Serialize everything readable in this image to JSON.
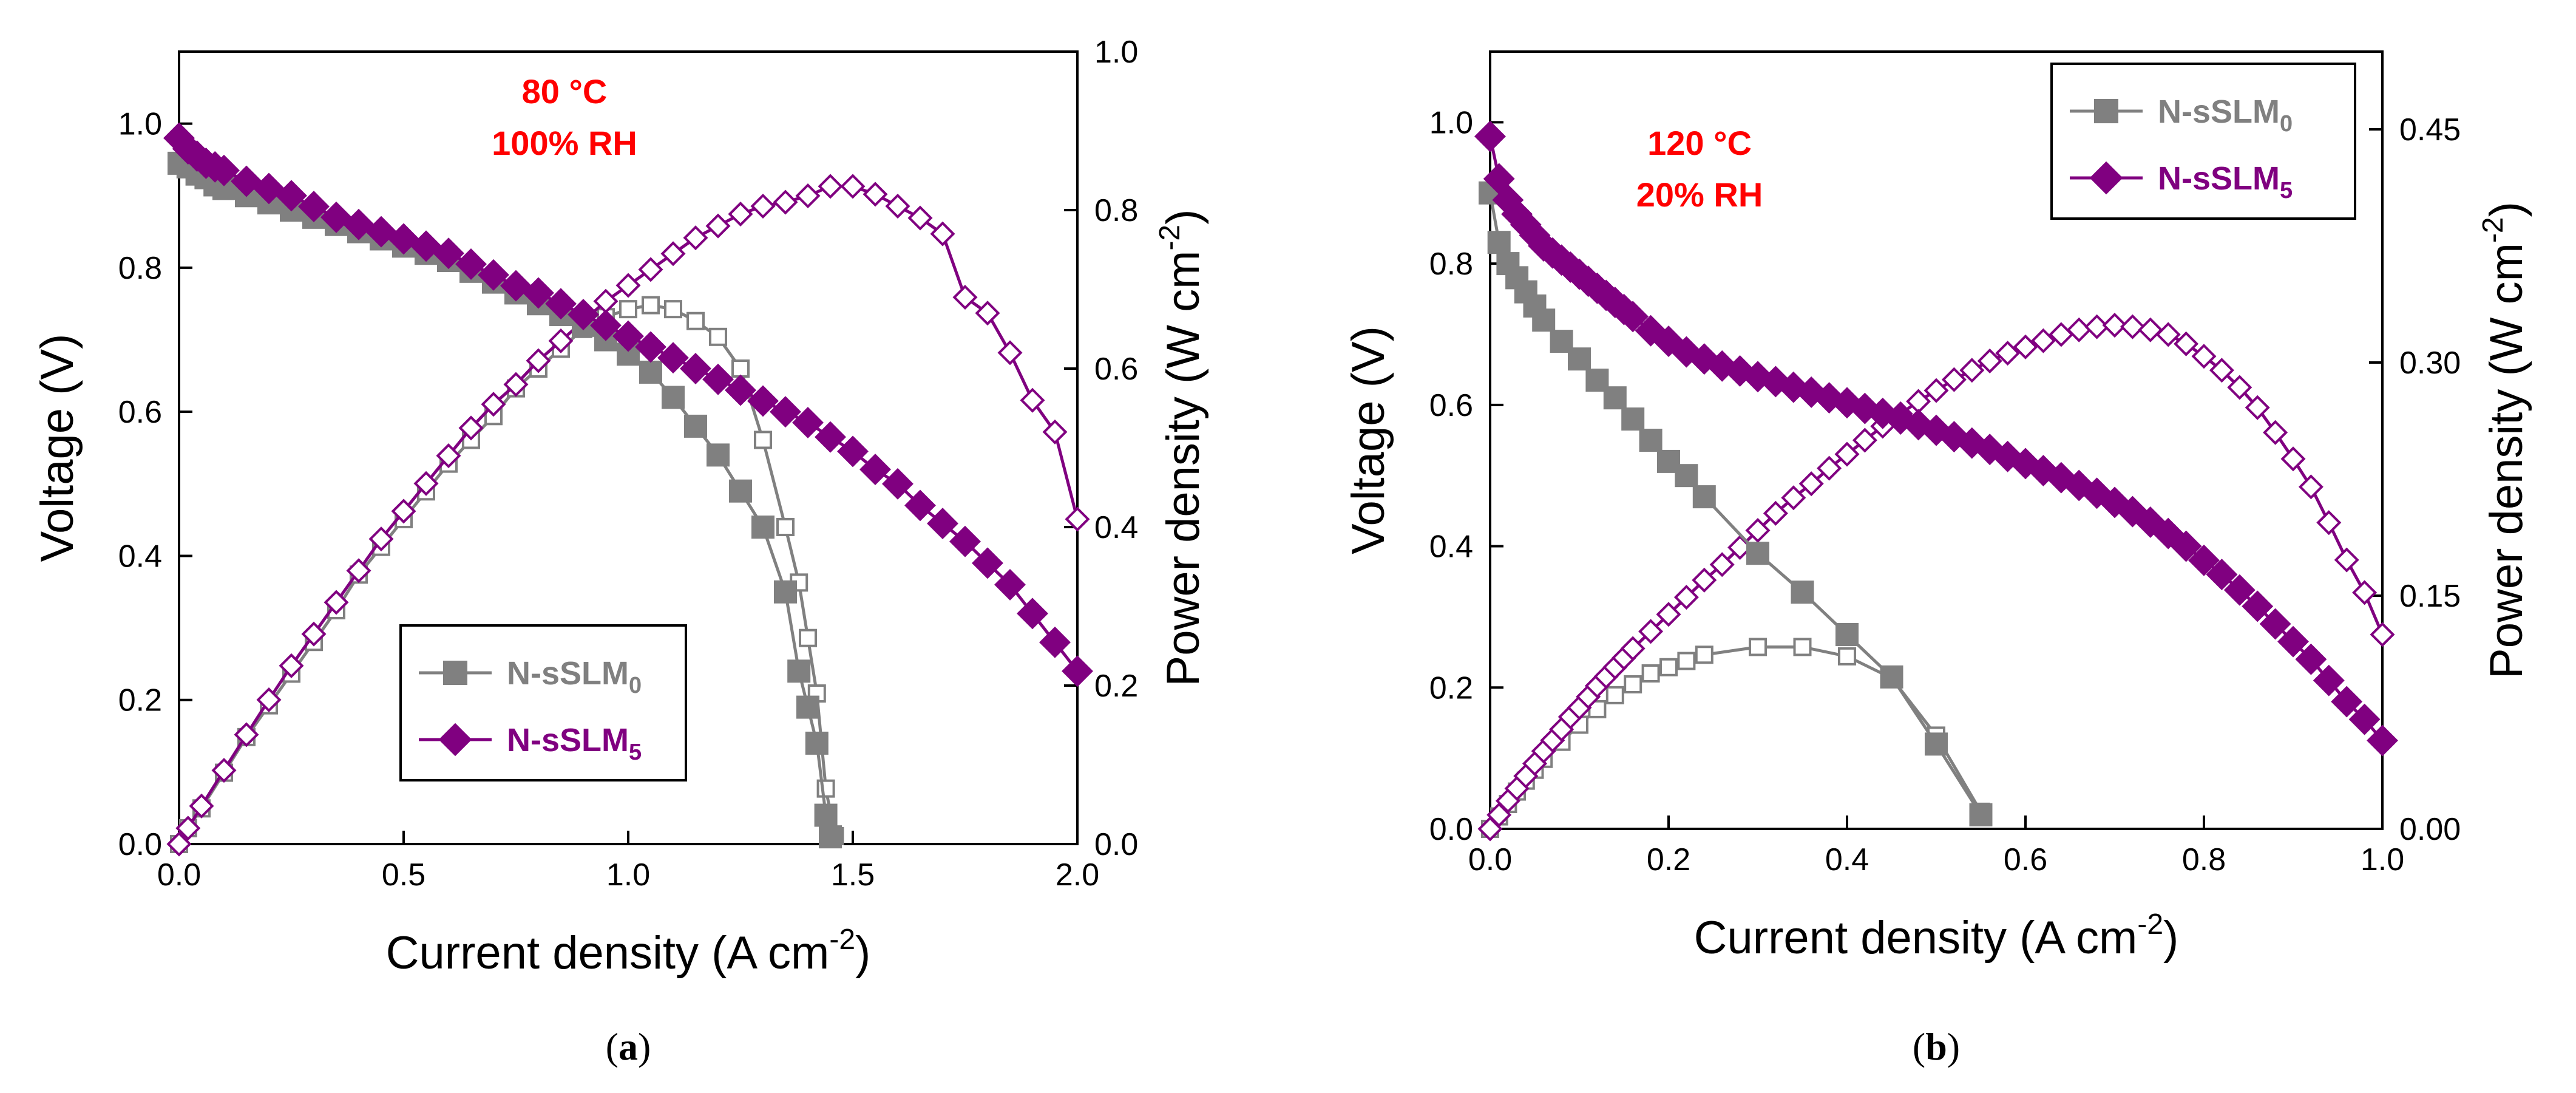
{
  "colors": {
    "gray": "#808080",
    "purple": "#800080",
    "annotation": "#ff0000",
    "axis": "#000000"
  },
  "chart_data": [
    {
      "type": "line",
      "panel_label": "(a)",
      "panel_letter": "a",
      "xlabel": "Current density (A cm",
      "xlabel_sup": "-2",
      "xlabel_end": ")",
      "ylabel_left": "Voltage (V)",
      "ylabel_right": "Power density (W cm",
      "ylabel_right_sup": "-2",
      "ylabel_right_end": ")",
      "xlim": [
        0,
        2.0
      ],
      "ylim_left": [
        0,
        1.1
      ],
      "ylim_right": [
        0,
        1.0
      ],
      "x_ticks": [
        0,
        0.5,
        1.0,
        1.5,
        2.0
      ],
      "x_tick_labels": [
        "0.0",
        "0.5",
        "1.0",
        "1.5",
        "2.0"
      ],
      "y_left_ticks": [
        0,
        0.2,
        0.4,
        0.6,
        0.8,
        1.0
      ],
      "y_left_tick_labels": [
        "0.0",
        "0.2",
        "0.4",
        "0.6",
        "0.8",
        "1.0"
      ],
      "y_right_ticks": [
        0,
        0.2,
        0.4,
        0.6,
        0.8,
        1.0
      ],
      "y_right_tick_labels": [
        "0.0",
        "0.2",
        "0.4",
        "0.6",
        "0.8",
        "1.0"
      ],
      "annotation": [
        "80 °C",
        "100% RH"
      ],
      "legend": {
        "position": "lower-center",
        "entries": [
          {
            "base": "N-sSLM",
            "sub": "0",
            "color": "#808080",
            "marker": "square"
          },
          {
            "base": "N-sSLM",
            "sub": "5",
            "color": "#800080",
            "marker": "diamond"
          }
        ]
      },
      "series": [
        {
          "name": "N-sSLM0 voltage",
          "axis": "left",
          "color": "#808080",
          "marker": "square",
          "filled": true,
          "x": [
            0,
            0.02,
            0.04,
            0.06,
            0.08,
            0.1,
            0.15,
            0.2,
            0.25,
            0.3,
            0.35,
            0.4,
            0.45,
            0.5,
            0.55,
            0.6,
            0.65,
            0.7,
            0.75,
            0.8,
            0.85,
            0.9,
            0.95,
            1.0,
            1.05,
            1.1,
            1.15,
            1.2,
            1.25,
            1.3,
            1.35,
            1.38,
            1.4,
            1.42,
            1.44,
            1.45
          ],
          "y": [
            0.945,
            0.94,
            0.93,
            0.925,
            0.915,
            0.91,
            0.9,
            0.89,
            0.88,
            0.87,
            0.86,
            0.85,
            0.84,
            0.83,
            0.82,
            0.81,
            0.795,
            0.78,
            0.765,
            0.75,
            0.735,
            0.72,
            0.7,
            0.68,
            0.655,
            0.62,
            0.58,
            0.54,
            0.49,
            0.44,
            0.35,
            0.24,
            0.19,
            0.14,
            0.04,
            0.01
          ]
        },
        {
          "name": "N-sSLM5 voltage",
          "axis": "left",
          "color": "#800080",
          "marker": "diamond",
          "filled": true,
          "x": [
            0,
            0.02,
            0.04,
            0.06,
            0.08,
            0.1,
            0.15,
            0.2,
            0.25,
            0.3,
            0.35,
            0.4,
            0.45,
            0.5,
            0.55,
            0.6,
            0.65,
            0.7,
            0.75,
            0.8,
            0.85,
            0.9,
            0.95,
            1.0,
            1.05,
            1.1,
            1.15,
            1.2,
            1.25,
            1.3,
            1.35,
            1.4,
            1.45,
            1.5,
            1.55,
            1.6,
            1.65,
            1.7,
            1.75,
            1.8,
            1.85,
            1.9,
            1.95,
            2.0
          ],
          "y": [
            0.98,
            0.965,
            0.955,
            0.945,
            0.94,
            0.935,
            0.92,
            0.91,
            0.9,
            0.885,
            0.87,
            0.86,
            0.85,
            0.84,
            0.83,
            0.82,
            0.805,
            0.79,
            0.775,
            0.765,
            0.75,
            0.735,
            0.72,
            0.705,
            0.69,
            0.675,
            0.66,
            0.645,
            0.63,
            0.615,
            0.6,
            0.585,
            0.565,
            0.545,
            0.52,
            0.5,
            0.47,
            0.445,
            0.42,
            0.39,
            0.36,
            0.32,
            0.28,
            0.24
          ]
        },
        {
          "name": "N-sSLM0 power density",
          "axis": "right",
          "color": "#808080",
          "marker": "square",
          "filled": false,
          "x": [
            0,
            0.02,
            0.05,
            0.1,
            0.15,
            0.2,
            0.25,
            0.3,
            0.35,
            0.4,
            0.45,
            0.5,
            0.55,
            0.6,
            0.65,
            0.7,
            0.75,
            0.8,
            0.85,
            0.9,
            0.95,
            1.0,
            1.05,
            1.1,
            1.15,
            1.2,
            1.25,
            1.3,
            1.35,
            1.38,
            1.4,
            1.42,
            1.44,
            1.46
          ],
          "y": [
            0,
            0.02,
            0.045,
            0.09,
            0.135,
            0.175,
            0.215,
            0.255,
            0.295,
            0.34,
            0.375,
            0.41,
            0.445,
            0.48,
            0.51,
            0.54,
            0.575,
            0.6,
            0.625,
            0.65,
            0.665,
            0.675,
            0.68,
            0.675,
            0.66,
            0.64,
            0.6,
            0.51,
            0.4,
            0.33,
            0.26,
            0.19,
            0.07,
            0.01
          ]
        },
        {
          "name": "N-sSLM5 power density",
          "axis": "right",
          "color": "#800080",
          "marker": "diamond",
          "filled": false,
          "x": [
            0,
            0.02,
            0.05,
            0.1,
            0.15,
            0.2,
            0.25,
            0.3,
            0.35,
            0.4,
            0.45,
            0.5,
            0.55,
            0.6,
            0.65,
            0.7,
            0.75,
            0.8,
            0.85,
            0.9,
            0.95,
            1.0,
            1.05,
            1.1,
            1.15,
            1.2,
            1.25,
            1.3,
            1.35,
            1.4,
            1.45,
            1.5,
            1.55,
            1.6,
            1.65,
            1.7,
            1.75,
            1.8,
            1.85,
            1.9,
            1.95,
            2.0
          ],
          "y": [
            0,
            0.02,
            0.048,
            0.093,
            0.138,
            0.182,
            0.225,
            0.265,
            0.305,
            0.345,
            0.385,
            0.42,
            0.455,
            0.49,
            0.525,
            0.555,
            0.58,
            0.61,
            0.635,
            0.66,
            0.685,
            0.705,
            0.725,
            0.745,
            0.765,
            0.78,
            0.795,
            0.805,
            0.81,
            0.818,
            0.83,
            0.83,
            0.82,
            0.805,
            0.79,
            0.77,
            0.69,
            0.67,
            0.62,
            0.56,
            0.52,
            0.41
          ]
        }
      ]
    },
    {
      "type": "line",
      "panel_label": "(b)",
      "panel_letter": "b",
      "xlabel": "Current density (A cm",
      "xlabel_sup": "-2",
      "xlabel_end": ")",
      "ylabel_left": "Voltage (V)",
      "ylabel_right": "Power density (W cm",
      "ylabel_right_sup": "-2",
      "ylabel_right_end": ")",
      "xlim": [
        0,
        1.0
      ],
      "ylim_left": [
        0,
        1.1
      ],
      "ylim_right": [
        0,
        0.5
      ],
      "x_ticks": [
        0,
        0.2,
        0.4,
        0.6,
        0.8,
        1.0
      ],
      "x_tick_labels": [
        "0.0",
        "0.2",
        "0.4",
        "0.6",
        "0.8",
        "1.0"
      ],
      "y_left_ticks": [
        0,
        0.2,
        0.4,
        0.6,
        0.8,
        1.0
      ],
      "y_left_tick_labels": [
        "0.0",
        "0.2",
        "0.4",
        "0.6",
        "0.8",
        "1.0"
      ],
      "y_right_ticks": [
        0,
        0.15,
        0.3,
        0.45
      ],
      "y_right_tick_labels": [
        "0.00",
        "0.15",
        "0.30",
        "0.45"
      ],
      "annotation": [
        "120 °C",
        "20% RH"
      ],
      "legend": {
        "position": "top-right",
        "entries": [
          {
            "base": "N-sSLM",
            "sub": "0",
            "color": "#808080",
            "marker": "square"
          },
          {
            "base": "N-sSLM",
            "sub": "5",
            "color": "#800080",
            "marker": "diamond"
          }
        ]
      },
      "series": [
        {
          "name": "N-sSLM0 voltage",
          "axis": "left",
          "color": "#808080",
          "marker": "square",
          "filled": true,
          "x": [
            0,
            0.01,
            0.02,
            0.03,
            0.04,
            0.05,
            0.06,
            0.08,
            0.1,
            0.12,
            0.14,
            0.16,
            0.18,
            0.2,
            0.22,
            0.24,
            0.3,
            0.35,
            0.4,
            0.45,
            0.5,
            0.55
          ],
          "y": [
            0.9,
            0.83,
            0.8,
            0.78,
            0.76,
            0.74,
            0.72,
            0.69,
            0.665,
            0.635,
            0.61,
            0.58,
            0.55,
            0.52,
            0.5,
            0.47,
            0.39,
            0.335,
            0.275,
            0.215,
            0.12,
            0.02
          ]
        },
        {
          "name": "N-sSLM5 voltage",
          "axis": "left",
          "color": "#800080",
          "marker": "diamond",
          "filled": true,
          "x": [
            0,
            0.01,
            0.02,
            0.03,
            0.04,
            0.05,
            0.06,
            0.07,
            0.08,
            0.09,
            0.1,
            0.11,
            0.12,
            0.13,
            0.14,
            0.15,
            0.16,
            0.18,
            0.2,
            0.22,
            0.24,
            0.26,
            0.28,
            0.3,
            0.32,
            0.34,
            0.36,
            0.38,
            0.4,
            0.42,
            0.44,
            0.46,
            0.48,
            0.5,
            0.52,
            0.54,
            0.56,
            0.58,
            0.6,
            0.62,
            0.64,
            0.66,
            0.68,
            0.7,
            0.72,
            0.74,
            0.76,
            0.78,
            0.8,
            0.82,
            0.84,
            0.86,
            0.88,
            0.9,
            0.92,
            0.94,
            0.96,
            0.98,
            1.0
          ],
          "y": [
            0.98,
            0.92,
            0.89,
            0.87,
            0.855,
            0.84,
            0.825,
            0.815,
            0.805,
            0.795,
            0.785,
            0.775,
            0.765,
            0.755,
            0.745,
            0.735,
            0.725,
            0.705,
            0.69,
            0.675,
            0.665,
            0.655,
            0.648,
            0.64,
            0.633,
            0.625,
            0.618,
            0.61,
            0.603,
            0.595,
            0.588,
            0.58,
            0.572,
            0.564,
            0.555,
            0.546,
            0.537,
            0.527,
            0.517,
            0.507,
            0.497,
            0.486,
            0.475,
            0.462,
            0.449,
            0.434,
            0.418,
            0.4,
            0.38,
            0.36,
            0.338,
            0.315,
            0.29,
            0.265,
            0.24,
            0.21,
            0.18,
            0.155,
            0.125
          ]
        },
        {
          "name": "N-sSLM0 power density",
          "axis": "right",
          "color": "#808080",
          "marker": "square",
          "filled": false,
          "x": [
            0,
            0.01,
            0.02,
            0.03,
            0.04,
            0.05,
            0.06,
            0.08,
            0.1,
            0.12,
            0.14,
            0.16,
            0.18,
            0.2,
            0.22,
            0.24,
            0.3,
            0.35,
            0.4,
            0.45,
            0.5,
            0.55
          ],
          "y": [
            0,
            0.008,
            0.016,
            0.024,
            0.031,
            0.038,
            0.045,
            0.056,
            0.067,
            0.077,
            0.086,
            0.093,
            0.1,
            0.104,
            0.108,
            0.112,
            0.117,
            0.117,
            0.111,
            0.097,
            0.06,
            0.011
          ]
        },
        {
          "name": "N-sSLM5 power density",
          "axis": "right",
          "color": "#800080",
          "marker": "diamond",
          "filled": false,
          "x": [
            0,
            0.01,
            0.02,
            0.03,
            0.04,
            0.05,
            0.06,
            0.07,
            0.08,
            0.09,
            0.1,
            0.11,
            0.12,
            0.13,
            0.14,
            0.15,
            0.16,
            0.18,
            0.2,
            0.22,
            0.24,
            0.26,
            0.28,
            0.3,
            0.32,
            0.34,
            0.36,
            0.38,
            0.4,
            0.42,
            0.44,
            0.46,
            0.48,
            0.5,
            0.52,
            0.54,
            0.56,
            0.58,
            0.6,
            0.62,
            0.64,
            0.66,
            0.68,
            0.7,
            0.72,
            0.74,
            0.76,
            0.78,
            0.8,
            0.82,
            0.84,
            0.86,
            0.88,
            0.9,
            0.92,
            0.94,
            0.96,
            0.98,
            1.0
          ],
          "y": [
            0,
            0.009,
            0.018,
            0.026,
            0.034,
            0.042,
            0.05,
            0.057,
            0.064,
            0.072,
            0.078,
            0.085,
            0.092,
            0.098,
            0.104,
            0.11,
            0.116,
            0.127,
            0.138,
            0.149,
            0.16,
            0.17,
            0.181,
            0.192,
            0.203,
            0.213,
            0.222,
            0.232,
            0.241,
            0.25,
            0.259,
            0.267,
            0.275,
            0.282,
            0.289,
            0.295,
            0.301,
            0.306,
            0.31,
            0.314,
            0.318,
            0.321,
            0.323,
            0.324,
            0.323,
            0.321,
            0.318,
            0.312,
            0.304,
            0.295,
            0.284,
            0.271,
            0.255,
            0.238,
            0.22,
            0.197,
            0.173,
            0.152,
            0.125
          ]
        }
      ]
    }
  ]
}
